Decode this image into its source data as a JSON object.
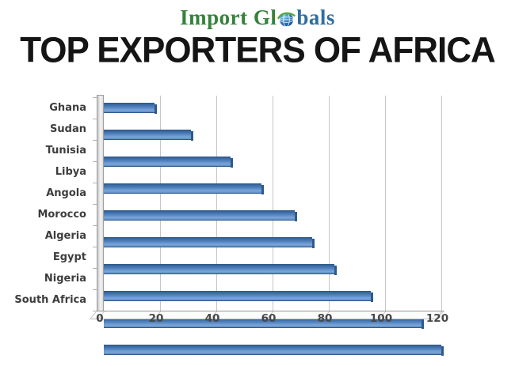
{
  "logo": {
    "text_green": "Import Gl",
    "text_blue": "bals",
    "green_color": "#35823b",
    "blue_color": "#2f6f9f"
  },
  "title": "TOP EXPORTERS OF AFRICA",
  "chart_data": {
    "type": "bar",
    "orientation": "horizontal",
    "title": "TOP EXPORTERS OF AFRICA",
    "categories": [
      "Ghana",
      "Sudan",
      "Tunisia",
      "Libya",
      "Angola",
      "Morocco",
      "Algeria",
      "Egypt",
      "Nigeria",
      "South Africa"
    ],
    "values": [
      18,
      31,
      45,
      56,
      68,
      74,
      82,
      95,
      113,
      120
    ],
    "x_ticks": [
      0,
      20,
      40,
      60,
      80,
      100,
      120
    ],
    "xlim": [
      0,
      120
    ],
    "xlabel": "",
    "ylabel": "",
    "grid": true,
    "legend": false,
    "bar_color": "#4f81bd",
    "bar_edge_color": "#2e598d",
    "style": "3d-beveled"
  }
}
